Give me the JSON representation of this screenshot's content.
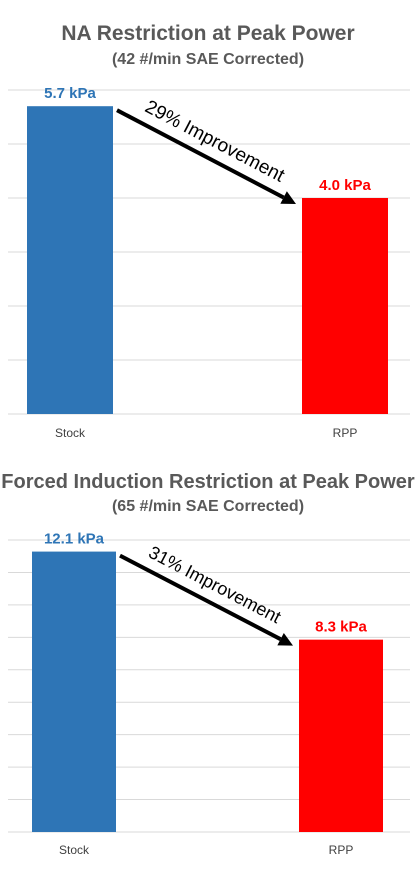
{
  "chart_data": [
    {
      "type": "bar",
      "title": "NA Restriction at Peak Power",
      "subtitle": "(42 #/min SAE Corrected)",
      "categories": [
        "Stock",
        "RPP"
      ],
      "values": [
        5.7,
        4.0
      ],
      "data_labels": [
        "5.7 kPa",
        "4.0 kPa"
      ],
      "colors": [
        "#2E75B6",
        "#FF0000"
      ],
      "annotation": "29% Improvement",
      "ylim": [
        0,
        6
      ],
      "grid": true,
      "xlabel": "",
      "ylabel": ""
    },
    {
      "type": "bar",
      "title": "Forced Induction Restriction at Peak Power",
      "subtitle": "(65 #/min SAE Corrected)",
      "categories": [
        "Stock",
        "RPP"
      ],
      "values": [
        12.1,
        8.3
      ],
      "data_labels": [
        "12.1 kPa",
        "8.3 kPa"
      ],
      "colors": [
        "#2E75B6",
        "#FF0000"
      ],
      "annotation": "31% Improvement",
      "ylim": [
        0,
        12.6
      ],
      "grid": true,
      "xlabel": "",
      "ylabel": ""
    }
  ]
}
